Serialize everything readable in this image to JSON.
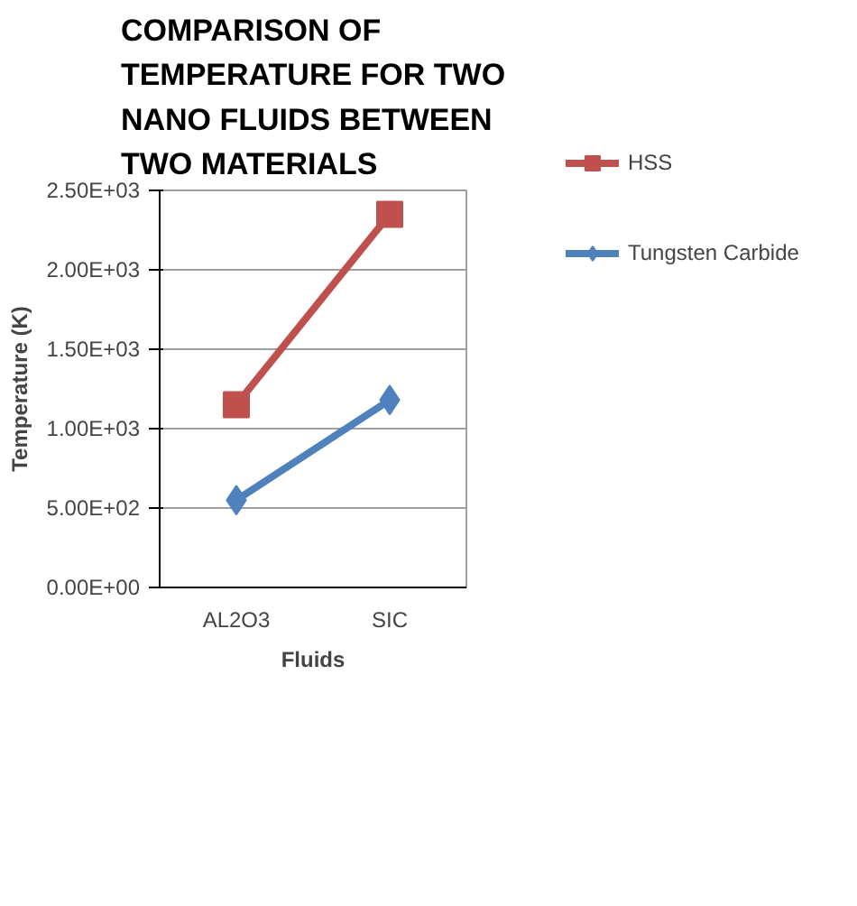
{
  "chart_data": {
    "type": "line",
    "title": "COMPARISON OF TEMPERATURE FOR TWO NANO FLUIDS BETWEEN TWO MATERIALS",
    "xlabel": "Fluids",
    "ylabel": "Temperature (K)",
    "categories": [
      "AL2O3",
      "SIC"
    ],
    "series": [
      {
        "name": "HSS",
        "color": "#c0504d",
        "marker": "square",
        "values": [
          1150,
          2350
        ]
      },
      {
        "name": "Tungsten Carbide",
        "color": "#4f81bd",
        "marker": "diamond",
        "values": [
          550,
          1180
        ]
      }
    ],
    "ylim": [
      0,
      2500
    ],
    "yticks": [
      {
        "value": 0,
        "label": "0.00E+00"
      },
      {
        "value": 500,
        "label": "5.00E+02"
      },
      {
        "value": 1000,
        "label": "1.00E+03"
      },
      {
        "value": 1500,
        "label": "1.50E+03"
      },
      {
        "value": 2000,
        "label": "2.00E+03"
      },
      {
        "value": 2500,
        "label": "2.50E+03"
      }
    ],
    "grid": "y",
    "legend": "right"
  }
}
